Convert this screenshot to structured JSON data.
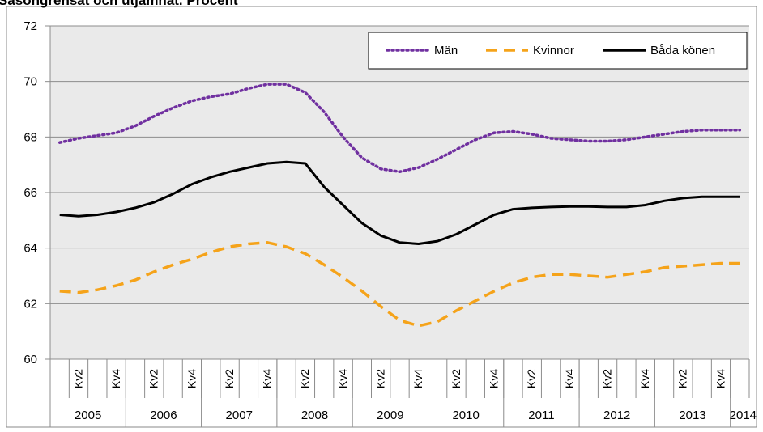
{
  "chart_data": {
    "type": "line",
    "title": "Säsongrensat och utjämnat. Procent",
    "categories": [
      null,
      "Kv2",
      null,
      "Kv4",
      null,
      "Kv2",
      null,
      "Kv4",
      null,
      "Kv2",
      null,
      "Kv4",
      null,
      "Kv2",
      null,
      "Kv4",
      null,
      "Kv2",
      null,
      "Kv4",
      null,
      "Kv2",
      null,
      "Kv4",
      null,
      "Kv2",
      null,
      "Kv4",
      null,
      "Kv2",
      null,
      "Kv4",
      null,
      "Kv2",
      null,
      "Kv4",
      null
    ],
    "years": [
      "2005",
      "2006",
      "2007",
      "2008",
      "2009",
      "2010",
      "2011",
      "2012",
      "2013",
      "2014"
    ],
    "series": [
      {
        "name": "Män",
        "color": "#7030a0",
        "style": "dotted",
        "values": [
          67.8,
          67.95,
          68.05,
          68.15,
          68.4,
          68.75,
          69.05,
          69.3,
          69.45,
          69.55,
          69.75,
          69.9,
          69.9,
          69.6,
          68.9,
          68.0,
          67.25,
          66.85,
          66.75,
          66.9,
          67.2,
          67.55,
          67.9,
          68.15,
          68.2,
          68.1,
          67.95,
          67.9,
          67.85,
          67.85,
          67.9,
          68.0,
          68.1,
          68.2,
          68.25,
          68.25,
          68.25
        ]
      },
      {
        "name": "Kvinnor",
        "color": "#f5a31a",
        "style": "dashed",
        "values": [
          62.45,
          62.4,
          62.5,
          62.65,
          62.85,
          63.15,
          63.4,
          63.6,
          63.85,
          64.05,
          64.15,
          64.2,
          64.05,
          63.8,
          63.4,
          62.95,
          62.45,
          61.9,
          61.4,
          61.2,
          61.35,
          61.75,
          62.1,
          62.45,
          62.75,
          62.95,
          63.05,
          63.05,
          63.0,
          62.95,
          63.05,
          63.15,
          63.3,
          63.35,
          63.4,
          63.45,
          63.45
        ]
      },
      {
        "name": "Båda könen",
        "color": "#000000",
        "style": "solid",
        "values": [
          65.2,
          65.15,
          65.2,
          65.3,
          65.45,
          65.65,
          65.95,
          66.3,
          66.55,
          66.75,
          66.9,
          67.05,
          67.1,
          67.05,
          66.2,
          65.55,
          64.9,
          64.45,
          64.2,
          64.15,
          64.25,
          64.5,
          64.85,
          65.2,
          65.4,
          65.45,
          65.48,
          65.5,
          65.5,
          65.48,
          65.48,
          65.55,
          65.7,
          65.8,
          65.85,
          65.85,
          65.85
        ]
      }
    ],
    "ylim": [
      60,
      72
    ],
    "yticks": [
      60,
      62,
      64,
      66,
      68,
      70,
      72
    ],
    "grid": true
  }
}
